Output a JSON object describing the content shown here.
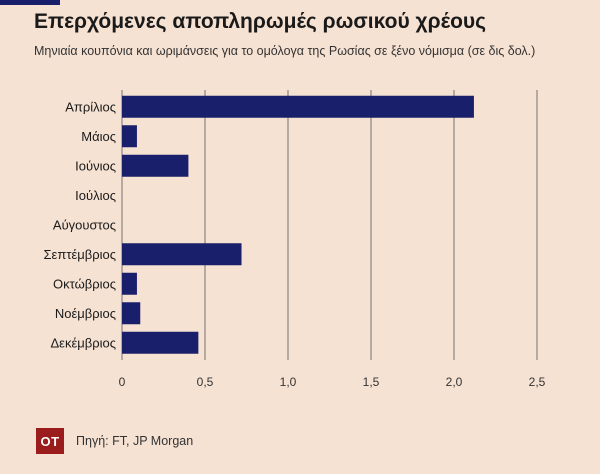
{
  "page": {
    "title": "Επερχόμενες αποπληρωμές ρωσικού χρέους",
    "subtitle": "Μηνιαία κουπόνια και ωριμάνσεις για το ομόλογα της Ρωσίας σε ξένο νόμισμα (σε δις δολ.)",
    "logo_text": "OT",
    "source": "Πηγή: FT, JP Morgan"
  },
  "colors": {
    "background": "#f6e2d3",
    "bar": "#1a1f6b",
    "grid": "#555555",
    "logo": "#9b1c1c"
  },
  "chart_data": {
    "type": "bar",
    "orientation": "horizontal",
    "categories": [
      "Απρίλιος",
      "Μάιος",
      "Ιούνιος",
      "Ιούλιος",
      "Αύγουστος",
      "Σεπτέμβριος",
      "Οκτώβριος",
      "Νοέμβριος",
      "Δεκέμβριος"
    ],
    "values": [
      2.12,
      0.09,
      0.4,
      0,
      0,
      0.72,
      0.09,
      0.11,
      0.46
    ],
    "xlim": [
      0,
      2.5
    ],
    "xticks": [
      0,
      0.5,
      1,
      1.5,
      2,
      2.5
    ],
    "xtick_labels": [
      "0",
      "0,5",
      "1,0",
      "1,5",
      "2,0",
      "2,5"
    ],
    "grid": "vertical",
    "legend": "none"
  }
}
